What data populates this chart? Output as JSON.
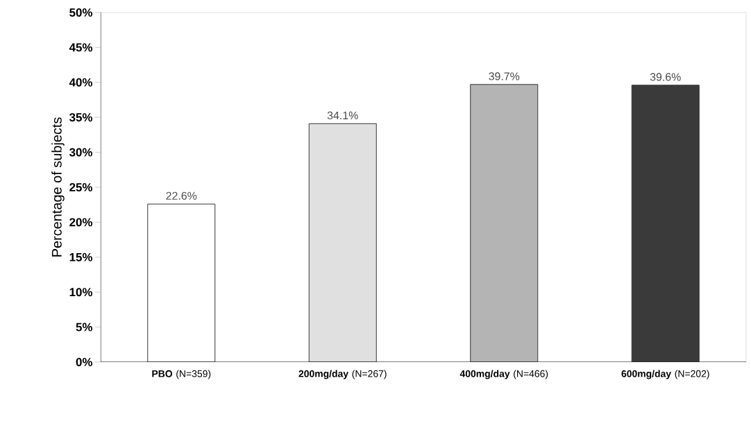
{
  "chart_data": {
    "type": "bar",
    "ylabel": "Percentage of subjects",
    "categories": [
      "**PBO** (N=359)",
      "**200mg/day** (N=267)",
      "**400mg/day** (N=466)",
      "**600mg/day** (N=202)"
    ],
    "values": [
      22.6,
      34.1,
      39.7,
      39.6
    ],
    "colors": [
      "#ffffff",
      "#e0e0e0",
      "#b4b4b4",
      "#3a3a3a"
    ],
    "value_labels": [
      "22.6%",
      "34.1%",
      "39.7%",
      "39.6%"
    ],
    "ylim": [
      0,
      50
    ],
    "yticks": [
      {
        "value": 0,
        "label": "0%"
      },
      {
        "value": 5,
        "label": "5%"
      },
      {
        "value": 10,
        "label": "10%"
      },
      {
        "value": 15,
        "label": "15%"
      },
      {
        "value": 20,
        "label": "20%"
      },
      {
        "value": 25,
        "label": "25%"
      },
      {
        "value": 30,
        "label": "30%"
      },
      {
        "value": 35,
        "label": "35%"
      },
      {
        "value": 40,
        "label": "40%"
      },
      {
        "value": 45,
        "label": "45%"
      },
      {
        "value": 50,
        "label": "50%"
      }
    ],
    "grid": false
  }
}
